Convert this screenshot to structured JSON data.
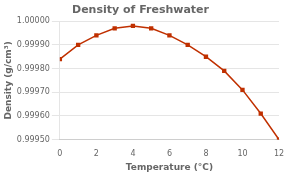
{
  "chart_data": {
    "type": "line",
    "title": "Density of Freshwater",
    "xlabel": "Temperature (°C)",
    "ylabel": "Density (g/cm³)",
    "x": [
      0,
      1,
      2,
      3,
      4,
      5,
      6,
      7,
      8,
      9,
      10,
      11,
      12
    ],
    "values": [
      0.99984,
      0.9999,
      0.99994,
      0.99997,
      0.99998,
      0.99997,
      0.99994,
      0.9999,
      0.99985,
      0.99979,
      0.99971,
      0.99961,
      0.9995
    ],
    "color": "#c03000",
    "marker": "square",
    "xlim": [
      0,
      12
    ],
    "ylim": [
      0.9995,
      1.0
    ],
    "xticks": [
      0,
      2,
      4,
      6,
      8,
      10,
      12
    ],
    "yticks": [
      {
        "value": 0.9995,
        "label": "0.99950"
      },
      {
        "value": 0.9996,
        "label": "0.99960"
      },
      {
        "value": 0.9997,
        "label": "0.99970"
      },
      {
        "value": 0.9998,
        "label": "0.99980"
      },
      {
        "value": 0.9999,
        "label": "0.99990"
      },
      {
        "value": 1.0,
        "label": "1.00000"
      }
    ],
    "grid": "y"
  }
}
